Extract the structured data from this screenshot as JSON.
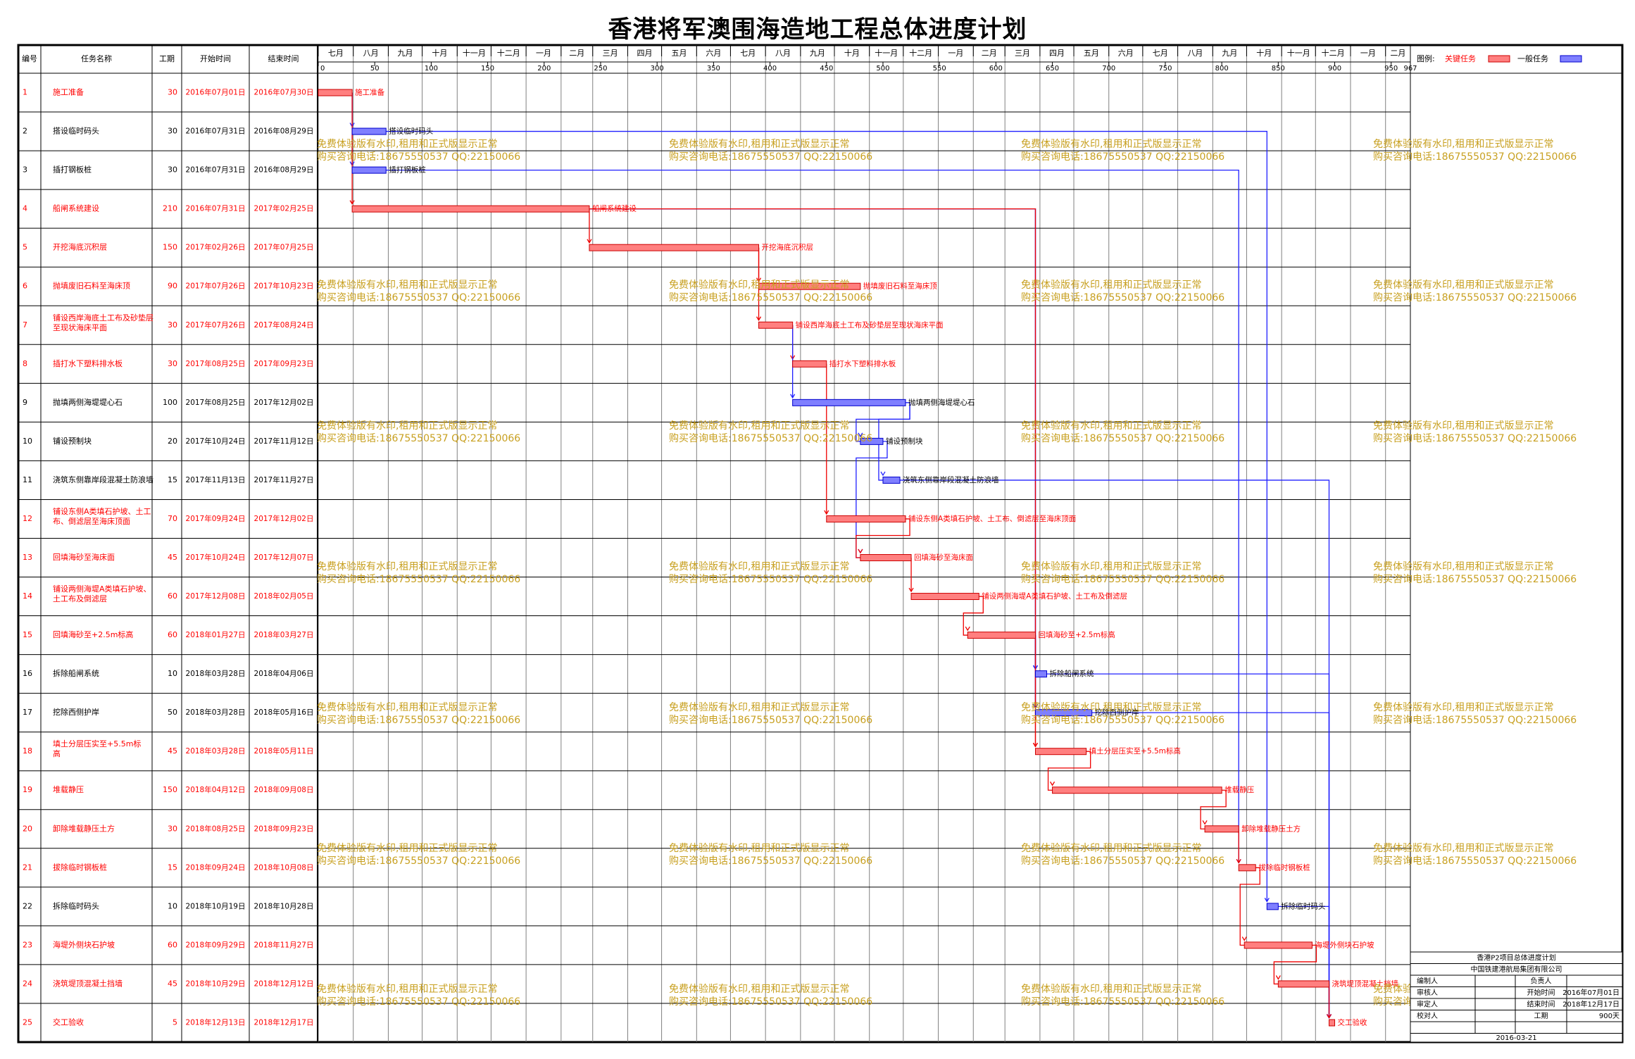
{
  "title": "香港将军澳围海造地工程总体进度计划",
  "header": {
    "id": "编号",
    "name": "任务名称",
    "duration": "工期",
    "start": "开始时间",
    "end": "结束时间"
  },
  "legend": {
    "label": "图例:",
    "critical": "关键任务",
    "normal": "一般任务"
  },
  "colors": {
    "critical": "#ff7f7f",
    "critical_stroke": "#cc0000",
    "normal": "#7f7fff",
    "normal_stroke": "#0000cc",
    "link": "#2020ff",
    "link_critical": "#ee0000",
    "critical_text": "#ff0000",
    "watermark": "#c8a020"
  },
  "month_labels": [
    "七月",
    "八月",
    "九月",
    "十月",
    "十一月",
    "十二月",
    "一月",
    "二月",
    "三月",
    "四月",
    "五月",
    "六月",
    "七月",
    "八月",
    "九月",
    "十月",
    "十一月",
    "十二月",
    "一月",
    "二月",
    "三月",
    "四月",
    "五月",
    "六月",
    "七月",
    "八月",
    "九月",
    "十月",
    "十一月",
    "十二月",
    "一月",
    "二月"
  ],
  "day_ticks": [
    "0",
    "50",
    "100",
    "150",
    "200",
    "250",
    "300",
    "350",
    "400",
    "450",
    "500",
    "550",
    "600",
    "650",
    "700",
    "750",
    "800",
    "850",
    "900",
    "950",
    "967"
  ],
  "watermark": [
    "免费体验版有水印,租用和正式版显示正常",
    "购买咨询电话:18675550537 QQ:22150066"
  ],
  "chart_data": {
    "type": "gantt",
    "x_unit": "day",
    "xlim": [
      0,
      967
    ],
    "start_date": "2016-07-01",
    "tasks": [
      {
        "id": "1",
        "name": "施工准备",
        "duration": "30",
        "start": "2016年07月01日",
        "end": "2016年07月30日",
        "s": 0,
        "d": 30,
        "critical": true,
        "label": "施工准备"
      },
      {
        "id": "2",
        "name": "搭设临时码头",
        "duration": "30",
        "start": "2016年07月31日",
        "end": "2016年08月29日",
        "s": 30,
        "d": 30,
        "critical": false,
        "label": "搭设临时码头"
      },
      {
        "id": "3",
        "name": "插打钢板桩",
        "duration": "30",
        "start": "2016年07月31日",
        "end": "2016年08月29日",
        "s": 30,
        "d": 30,
        "critical": false,
        "label": "插打钢板桩"
      },
      {
        "id": "4",
        "name": "船闸系统建设",
        "duration": "210",
        "start": "2016年07月31日",
        "end": "2017年02月25日",
        "s": 30,
        "d": 210,
        "critical": true,
        "label": "船闸系统建设"
      },
      {
        "id": "5",
        "name": "开挖海底沉积层",
        "duration": "150",
        "start": "2017年02月26日",
        "end": "2017年07月25日",
        "s": 240,
        "d": 150,
        "critical": true,
        "label": "开挖海底沉积层"
      },
      {
        "id": "6",
        "name": "抛填废旧石料至海床顶",
        "duration": "90",
        "start": "2017年07月26日",
        "end": "2017年10月23日",
        "s": 390,
        "d": 90,
        "critical": true,
        "label": "抛填废旧石料至海床顶"
      },
      {
        "id": "7",
        "name": "铺设西岸海底土工布及砂垫层至现状海床平面",
        "duration": "30",
        "start": "2017年07月26日",
        "end": "2017年08月24日",
        "s": 390,
        "d": 30,
        "critical": true,
        "label": "铺设西岸海底土工布及砂垫层至现状海床平面"
      },
      {
        "id": "8",
        "name": "插打水下塑料排水板",
        "duration": "30",
        "start": "2017年08月25日",
        "end": "2017年09月23日",
        "s": 420,
        "d": 30,
        "critical": true,
        "label": "插打水下塑料排水板"
      },
      {
        "id": "9",
        "name": "抛填两侧海堤堤心石",
        "duration": "100",
        "start": "2017年08月25日",
        "end": "2017年12月02日",
        "s": 420,
        "d": 100,
        "critical": false,
        "label": "抛填两侧海堤堤心石"
      },
      {
        "id": "10",
        "name": "铺设预制块",
        "duration": "20",
        "start": "2017年10月24日",
        "end": "2017年11月12日",
        "s": 480,
        "d": 20,
        "critical": false,
        "label": "铺设预制块"
      },
      {
        "id": "11",
        "name": "浇筑东侧靠岸段混凝土防浪墙",
        "duration": "15",
        "start": "2017年11月13日",
        "end": "2017年11月27日",
        "s": 500,
        "d": 15,
        "critical": false,
        "label": "浇筑东侧靠岸段混凝土防浪墙"
      },
      {
        "id": "12",
        "name": "铺设东侧A类填石护坡、土工布、倒滤层至海床顶面",
        "duration": "70",
        "start": "2017年09月24日",
        "end": "2017年12月02日",
        "s": 450,
        "d": 70,
        "critical": true,
        "label": "铺设东侧A类填石护坡、土工布、倒滤层至海床顶面"
      },
      {
        "id": "13",
        "name": "回填海砂至海床面",
        "duration": "45",
        "start": "2017年10月24日",
        "end": "2017年12月07日",
        "s": 480,
        "d": 45,
        "critical": true,
        "label": "回填海砂至海床面"
      },
      {
        "id": "14",
        "name": "铺设两侧海堤A类填石护坡、土工布及倒滤层",
        "duration": "60",
        "start": "2017年12月08日",
        "end": "2018年02月05日",
        "s": 525,
        "d": 60,
        "critical": true,
        "label": "铺设两侧海堤A类填石护坡、土工布及倒滤层"
      },
      {
        "id": "15",
        "name": "回填海砂至+2.5m标高",
        "duration": "60",
        "start": "2018年01月27日",
        "end": "2018年03月27日",
        "s": 575,
        "d": 60,
        "critical": true,
        "label": "回填海砂至+2.5m标高"
      },
      {
        "id": "16",
        "name": "拆除船闸系统",
        "duration": "10",
        "start": "2018年03月28日",
        "end": "2018年04月06日",
        "s": 635,
        "d": 10,
        "critical": false,
        "label": "拆除船闸系统"
      },
      {
        "id": "17",
        "name": "挖除西侧护岸",
        "duration": "50",
        "start": "2018年03月28日",
        "end": "2018年05月16日",
        "s": 635,
        "d": 50,
        "critical": false,
        "label": "挖除西侧护岸"
      },
      {
        "id": "18",
        "name": "填土分层压实至+5.5m标高",
        "duration": "45",
        "start": "2018年03月28日",
        "end": "2018年05月11日",
        "s": 635,
        "d": 45,
        "critical": true,
        "label": "填土分层压实至+5.5m标高"
      },
      {
        "id": "19",
        "name": "堆载静压",
        "duration": "150",
        "start": "2018年04月12日",
        "end": "2018年09月08日",
        "s": 650,
        "d": 150,
        "critical": true,
        "label": "堆载静压"
      },
      {
        "id": "20",
        "name": "卸除堆载静压土方",
        "duration": "30",
        "start": "2018年08月25日",
        "end": "2018年09月23日",
        "s": 785,
        "d": 30,
        "critical": true,
        "label": "卸除堆载静压土方"
      },
      {
        "id": "21",
        "name": "拔除临时钢板桩",
        "duration": "15",
        "start": "2018年09月24日",
        "end": "2018年10月08日",
        "s": 815,
        "d": 15,
        "critical": true,
        "label": "拔除临时钢板桩"
      },
      {
        "id": "22",
        "name": "拆除临时码头",
        "duration": "10",
        "start": "2018年10月19日",
        "end": "2018年10月28日",
        "s": 840,
        "d": 10,
        "critical": false,
        "label": "拆除临时码头"
      },
      {
        "id": "23",
        "name": "海堤外侧块石护坡",
        "duration": "60",
        "start": "2018年09月29日",
        "end": "2018年11月27日",
        "s": 820,
        "d": 60,
        "critical": true,
        "label": "海堤外侧块石护坡"
      },
      {
        "id": "24",
        "name": "浇筑堤顶混凝土挡墙",
        "duration": "45",
        "start": "2018年10月29日",
        "end": "2018年12月12日",
        "s": 850,
        "d": 45,
        "critical": true,
        "label": "浇筑堤顶混凝土挡墙"
      },
      {
        "id": "25",
        "name": "交工验收",
        "duration": "5",
        "start": "2018年12月13日",
        "end": "2018年12月17日",
        "s": 895,
        "d": 5,
        "critical": true,
        "label": "交工验收"
      }
    ],
    "links": [
      [
        1,
        2
      ],
      [
        1,
        3
      ],
      [
        1,
        4
      ],
      [
        2,
        22
      ],
      [
        3,
        21
      ],
      [
        4,
        5
      ],
      [
        4,
        16
      ],
      [
        4,
        17
      ],
      [
        4,
        18
      ],
      [
        5,
        6
      ],
      [
        5,
        7
      ],
      [
        7,
        8
      ],
      [
        7,
        9
      ],
      [
        8,
        12
      ],
      [
        9,
        10
      ],
      [
        9,
        11
      ],
      [
        10,
        13
      ],
      [
        11,
        25
      ],
      [
        12,
        13
      ],
      [
        13,
        14
      ],
      [
        14,
        15
      ],
      [
        15,
        16
      ],
      [
        15,
        17
      ],
      [
        15,
        18
      ],
      [
        16,
        25
      ],
      [
        17,
        25
      ],
      [
        18,
        19
      ],
      [
        19,
        20
      ],
      [
        20,
        21
      ],
      [
        21,
        23
      ],
      [
        22,
        25
      ],
      [
        23,
        24
      ],
      [
        24,
        25
      ]
    ]
  },
  "info_box": {
    "project": "香港P2项目总体进度计划",
    "company": "中国铁建港航局集团有限公司",
    "compiler_label": "编制人",
    "responsible_label": "负责人",
    "reviewer_label": "审核人",
    "start_label": "开始时间",
    "start_value": "2016年07月01日",
    "approver_label": "审定人",
    "end_label": "结束时间",
    "end_value": "2018年12月17日",
    "checker_label": "校对人",
    "duration_label": "工期",
    "duration_value": "900天",
    "date": "2016-03-21"
  }
}
